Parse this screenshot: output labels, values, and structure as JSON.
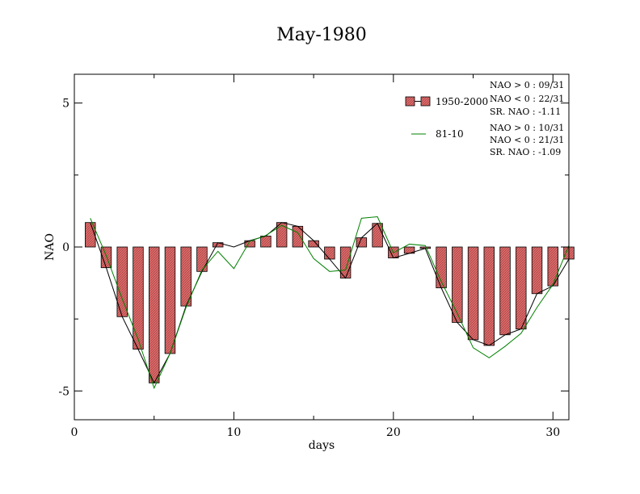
{
  "chart_data": {
    "type": "bar",
    "title": "May-1980",
    "xlabel": "days",
    "ylabel": "NAO",
    "xlim": [
      0,
      31
    ],
    "ylim": [
      -6,
      6
    ],
    "xticks": [
      0,
      10,
      20,
      30
    ],
    "xtick_labels": [
      "0",
      "10",
      "20",
      "30"
    ],
    "yticks": [
      -5,
      0,
      5
    ],
    "ytick_labels": [
      "-5",
      "0",
      "5"
    ],
    "days": [
      1,
      2,
      3,
      4,
      5,
      6,
      7,
      8,
      9,
      10,
      11,
      12,
      13,
      14,
      15,
      16,
      17,
      18,
      19,
      20,
      21,
      22,
      23,
      24,
      25,
      26,
      27,
      28,
      29,
      30,
      31
    ],
    "series": [
      {
        "name": "1950-2000",
        "style": "bars+line",
        "bar_color": "#e06a6a",
        "line_color": "#000000",
        "values": [
          0.85,
          -0.72,
          -2.42,
          -3.55,
          -4.72,
          -3.7,
          -2.05,
          -0.85,
          0.15,
          0.0,
          0.22,
          0.38,
          0.85,
          0.72,
          0.22,
          -0.42,
          -1.08,
          0.32,
          0.82,
          -0.38,
          -0.22,
          -0.05,
          -1.42,
          -2.62,
          -3.22,
          -3.42,
          -3.05,
          -2.85,
          -1.62,
          -1.35,
          -0.42
        ]
      },
      {
        "name": "81-10",
        "style": "line",
        "line_color": "#008000",
        "values": [
          1.0,
          -0.3,
          -1.8,
          -3.2,
          -4.9,
          -3.7,
          -2.1,
          -0.8,
          -0.15,
          -0.75,
          0.2,
          0.4,
          0.75,
          0.5,
          -0.4,
          -0.85,
          -0.8,
          1.0,
          1.05,
          -0.2,
          0.1,
          0.05,
          -1.2,
          -2.3,
          -3.5,
          -3.85,
          -3.45,
          -3.0,
          -2.1,
          -1.3,
          0.05
        ]
      }
    ],
    "legend": {
      "placement": "top-right",
      "entries": [
        {
          "label": "1950-2000",
          "stats": [
            "NAO > 0 : 09/31",
            "NAO < 0 : 22/31",
            "SR. NAO : -1.11"
          ]
        },
        {
          "label": "81-10",
          "stats": [
            "NAO > 0 : 10/31",
            "NAO < 0 : 21/31",
            "SR. NAO : -1.09"
          ]
        }
      ]
    }
  }
}
